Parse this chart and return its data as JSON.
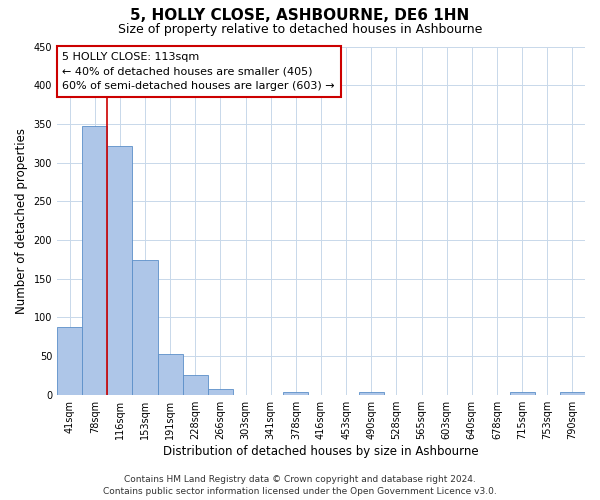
{
  "title": "5, HOLLY CLOSE, ASHBOURNE, DE6 1HN",
  "subtitle": "Size of property relative to detached houses in Ashbourne",
  "xlabel": "Distribution of detached houses by size in Ashbourne",
  "ylabel": "Number of detached properties",
  "bar_labels": [
    "41sqm",
    "78sqm",
    "116sqm",
    "153sqm",
    "191sqm",
    "228sqm",
    "266sqm",
    "303sqm",
    "341sqm",
    "378sqm",
    "416sqm",
    "453sqm",
    "490sqm",
    "528sqm",
    "565sqm",
    "603sqm",
    "640sqm",
    "678sqm",
    "715sqm",
    "753sqm",
    "790sqm"
  ],
  "bar_values": [
    88,
    347,
    322,
    174,
    53,
    25,
    8,
    0,
    0,
    3,
    0,
    0,
    3,
    0,
    0,
    0,
    0,
    0,
    3,
    0,
    3
  ],
  "bar_color": "#aec6e8",
  "bar_edge_color": "#5b8fc9",
  "vertical_line_color": "#cc0000",
  "vertical_line_x": 1.5,
  "ylim": [
    0,
    450
  ],
  "yticks": [
    0,
    50,
    100,
    150,
    200,
    250,
    300,
    350,
    400,
    450
  ],
  "annotation_title": "5 HOLLY CLOSE: 113sqm",
  "annotation_line1": "← 40% of detached houses are smaller (405)",
  "annotation_line2": "60% of semi-detached houses are larger (603) →",
  "annotation_box_color": "#ffffff",
  "annotation_box_edge_color": "#cc0000",
  "footer_line1": "Contains HM Land Registry data © Crown copyright and database right 2024.",
  "footer_line2": "Contains public sector information licensed under the Open Government Licence v3.0.",
  "background_color": "#ffffff",
  "grid_color": "#c8d8ea",
  "title_fontsize": 11,
  "subtitle_fontsize": 9,
  "axis_label_fontsize": 8.5,
  "tick_fontsize": 7,
  "annotation_fontsize": 8,
  "footer_fontsize": 6.5
}
